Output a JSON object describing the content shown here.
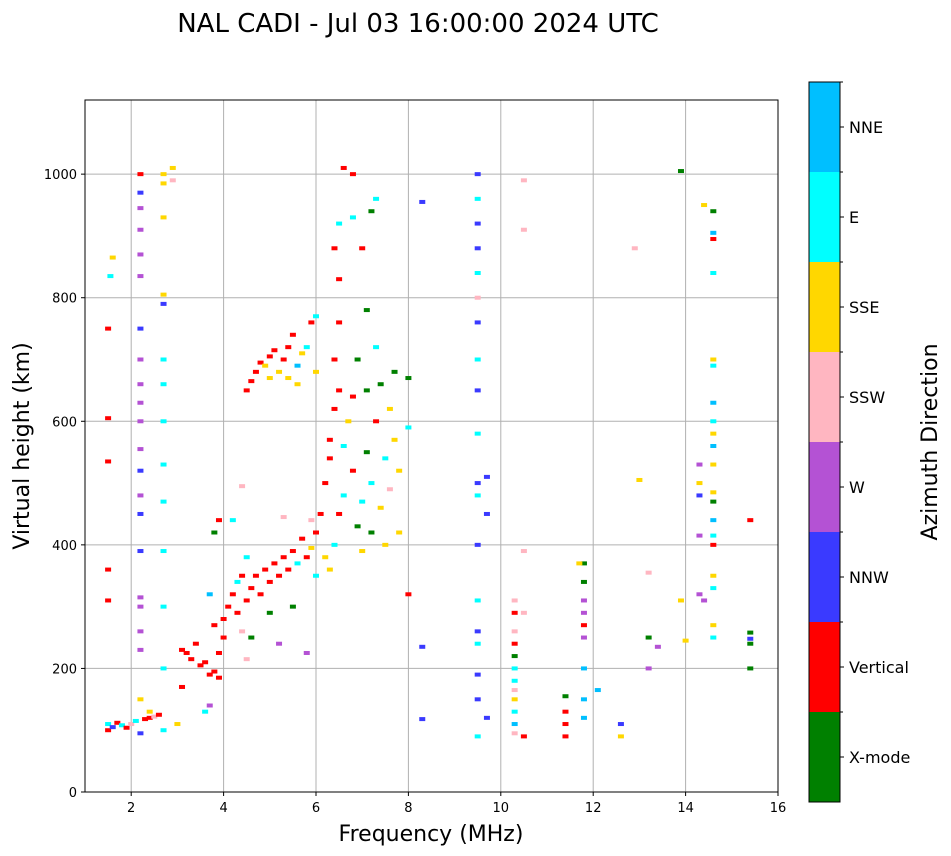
{
  "chart_data": {
    "type": "scatter",
    "title": "NAL CADI - Jul 03 16:00:00 2024 UTC",
    "xlabel": "Frequency (MHz)",
    "ylabel": "Virtual height (km)",
    "xlim": [
      1,
      16
    ],
    "ylim": [
      0,
      1120
    ],
    "xticks": [
      2,
      4,
      6,
      8,
      10,
      12,
      14,
      16
    ],
    "yticks": [
      0,
      200,
      400,
      600,
      800,
      1000
    ],
    "grid": true,
    "colorbar": {
      "label": "Azimuth Direction",
      "categories": [
        "X-mode",
        "Vertical",
        "NNW",
        "W",
        "SSW",
        "SSE",
        "E",
        "NNE"
      ],
      "colors": [
        "#008000",
        "#ff0000",
        "#3a3aff",
        "#b452d4",
        "#ffb6c1",
        "#ffd700",
        "#00ffff",
        "#00bfff"
      ]
    },
    "point_format": [
      "frequency_mhz",
      "height_km",
      "direction_index"
    ],
    "points": [
      [
        1.5,
        100,
        1
      ],
      [
        1.5,
        110,
        6
      ],
      [
        1.6,
        105,
        2
      ],
      [
        1.7,
        112,
        1
      ],
      [
        1.8,
        108,
        6
      ],
      [
        1.9,
        104,
        1
      ],
      [
        2.0,
        110,
        4
      ],
      [
        2.1,
        115,
        6
      ],
      [
        2.2,
        95,
        2
      ],
      [
        2.3,
        118,
        1
      ],
      [
        2.4,
        120,
        1
      ],
      [
        2.5,
        122,
        4
      ],
      [
        2.6,
        125,
        1
      ],
      [
        2.4,
        130,
        5
      ],
      [
        1.5,
        310,
        1
      ],
      [
        1.5,
        360,
        1
      ],
      [
        1.5,
        535,
        1
      ],
      [
        1.5,
        605,
        1
      ],
      [
        1.5,
        750,
        1
      ],
      [
        1.6,
        865,
        5
      ],
      [
        1.55,
        835,
        6
      ],
      [
        2.2,
        150,
        5
      ],
      [
        2.2,
        230,
        3
      ],
      [
        2.2,
        260,
        3
      ],
      [
        2.2,
        300,
        3
      ],
      [
        2.2,
        315,
        3
      ],
      [
        2.2,
        390,
        2
      ],
      [
        2.2,
        450,
        2
      ],
      [
        2.2,
        480,
        3
      ],
      [
        2.2,
        520,
        2
      ],
      [
        2.2,
        555,
        3
      ],
      [
        2.2,
        600,
        3
      ],
      [
        2.2,
        630,
        3
      ],
      [
        2.2,
        660,
        3
      ],
      [
        2.2,
        700,
        3
      ],
      [
        2.2,
        750,
        2
      ],
      [
        2.2,
        835,
        3
      ],
      [
        2.2,
        870,
        3
      ],
      [
        2.2,
        910,
        3
      ],
      [
        2.2,
        945,
        3
      ],
      [
        2.2,
        970,
        2
      ],
      [
        2.2,
        1000,
        1
      ],
      [
        2.7,
        100,
        6
      ],
      [
        2.7,
        200,
        6
      ],
      [
        2.7,
        300,
        6
      ],
      [
        2.7,
        390,
        6
      ],
      [
        2.7,
        470,
        6
      ],
      [
        2.7,
        530,
        6
      ],
      [
        2.7,
        600,
        6
      ],
      [
        2.7,
        660,
        6
      ],
      [
        2.7,
        700,
        6
      ],
      [
        2.7,
        790,
        2
      ],
      [
        2.7,
        805,
        5
      ],
      [
        2.7,
        930,
        5
      ],
      [
        2.7,
        985,
        5
      ],
      [
        2.7,
        1000,
        5
      ],
      [
        2.9,
        990,
        4
      ],
      [
        2.9,
        1010,
        5
      ],
      [
        3.0,
        110,
        5
      ],
      [
        3.1,
        170,
        1
      ],
      [
        3.1,
        230,
        1
      ],
      [
        3.2,
        225,
        1
      ],
      [
        3.3,
        215,
        1
      ],
      [
        3.4,
        240,
        1
      ],
      [
        3.5,
        205,
        1
      ],
      [
        3.6,
        210,
        1
      ],
      [
        3.7,
        190,
        1
      ],
      [
        3.8,
        195,
        1
      ],
      [
        3.9,
        185,
        1
      ],
      [
        3.9,
        225,
        1
      ],
      [
        3.8,
        270,
        1
      ],
      [
        4.0,
        250,
        1
      ],
      [
        4.0,
        280,
        1
      ],
      [
        4.1,
        300,
        1
      ],
      [
        4.2,
        320,
        1
      ],
      [
        4.3,
        340,
        6
      ],
      [
        4.3,
        290,
        1
      ],
      [
        4.4,
        260,
        4
      ],
      [
        4.4,
        350,
        1
      ],
      [
        4.5,
        310,
        1
      ],
      [
        4.5,
        380,
        6
      ],
      [
        3.6,
        130,
        6
      ],
      [
        3.7,
        140,
        3
      ],
      [
        3.7,
        320,
        7
      ],
      [
        3.8,
        420,
        0
      ],
      [
        3.9,
        440,
        1
      ],
      [
        4.2,
        440,
        6
      ],
      [
        4.4,
        495,
        4
      ],
      [
        4.5,
        215,
        4
      ],
      [
        4.6,
        250,
        0
      ],
      [
        4.6,
        330,
        1
      ],
      [
        4.7,
        350,
        1
      ],
      [
        4.8,
        320,
        1
      ],
      [
        4.9,
        360,
        1
      ],
      [
        5.0,
        340,
        1
      ],
      [
        5.0,
        290,
        0
      ],
      [
        5.1,
        370,
        1
      ],
      [
        5.2,
        350,
        1
      ],
      [
        5.2,
        240,
        3
      ],
      [
        5.3,
        380,
        1
      ],
      [
        5.4,
        360,
        1
      ],
      [
        5.5,
        390,
        1
      ],
      [
        5.5,
        300,
        0
      ],
      [
        5.6,
        370,
        6
      ],
      [
        5.7,
        410,
        1
      ],
      [
        5.8,
        380,
        1
      ],
      [
        5.8,
        225,
        3
      ],
      [
        5.9,
        395,
        5
      ],
      [
        6.0,
        420,
        1
      ],
      [
        6.0,
        350,
        6
      ],
      [
        5.9,
        440,
        4
      ],
      [
        5.3,
        445,
        4
      ],
      [
        4.5,
        650,
        1
      ],
      [
        4.6,
        665,
        1
      ],
      [
        4.7,
        680,
        1
      ],
      [
        4.8,
        695,
        1
      ],
      [
        4.9,
        690,
        5
      ],
      [
        5.0,
        705,
        1
      ],
      [
        5.1,
        715,
        1
      ],
      [
        5.2,
        680,
        5
      ],
      [
        5.3,
        700,
        1
      ],
      [
        5.4,
        720,
        1
      ],
      [
        5.4,
        670,
        5
      ],
      [
        5.5,
        740,
        1
      ],
      [
        5.6,
        690,
        7
      ],
      [
        5.7,
        710,
        5
      ],
      [
        5.8,
        720,
        6
      ],
      [
        5.9,
        760,
        1
      ],
      [
        6.0,
        770,
        6
      ],
      [
        6.0,
        680,
        5
      ],
      [
        5.6,
        660,
        5
      ],
      [
        5.0,
        670,
        5
      ],
      [
        6.1,
        450,
        1
      ],
      [
        6.2,
        500,
        1
      ],
      [
        6.3,
        540,
        1
      ],
      [
        6.3,
        570,
        1
      ],
      [
        6.4,
        620,
        1
      ],
      [
        6.5,
        650,
        1
      ],
      [
        6.4,
        700,
        1
      ],
      [
        6.5,
        760,
        1
      ],
      [
        6.5,
        830,
        1
      ],
      [
        6.4,
        880,
        1
      ],
      [
        6.5,
        920,
        6
      ],
      [
        6.6,
        1010,
        1
      ],
      [
        6.2,
        380,
        5
      ],
      [
        6.3,
        360,
        5
      ],
      [
        6.4,
        400,
        6
      ],
      [
        6.5,
        450,
        1
      ],
      [
        6.6,
        480,
        6
      ],
      [
        6.6,
        560,
        6
      ],
      [
        6.7,
        600,
        5
      ],
      [
        6.8,
        520,
        1
      ],
      [
        6.8,
        640,
        1
      ],
      [
        6.9,
        700,
        0
      ],
      [
        6.9,
        430,
        0
      ],
      [
        7.0,
        390,
        5
      ],
      [
        7.0,
        470,
        6
      ],
      [
        7.1,
        550,
        0
      ],
      [
        7.1,
        650,
        0
      ],
      [
        7.1,
        780,
        0
      ],
      [
        7.2,
        420,
        0
      ],
      [
        7.2,
        500,
        6
      ],
      [
        7.3,
        600,
        1
      ],
      [
        7.3,
        720,
        6
      ],
      [
        7.4,
        460,
        5
      ],
      [
        7.4,
        660,
        0
      ],
      [
        7.5,
        400,
        5
      ],
      [
        7.5,
        540,
        6
      ],
      [
        7.6,
        490,
        4
      ],
      [
        7.6,
        620,
        5
      ],
      [
        7.7,
        570,
        5
      ],
      [
        7.8,
        520,
        5
      ],
      [
        7.8,
        420,
        5
      ],
      [
        7.7,
        680,
        0
      ],
      [
        7.2,
        940,
        0
      ],
      [
        7.3,
        960,
        6
      ],
      [
        6.8,
        1000,
        1
      ],
      [
        6.8,
        930,
        6
      ],
      [
        7.0,
        880,
        1
      ],
      [
        8.0,
        590,
        6
      ],
      [
        8.0,
        670,
        0
      ],
      [
        8.0,
        320,
        1
      ],
      [
        8.3,
        955,
        2
      ],
      [
        8.3,
        235,
        2
      ],
      [
        8.3,
        118,
        2
      ],
      [
        9.5,
        90,
        6
      ],
      [
        9.5,
        150,
        2
      ],
      [
        9.5,
        190,
        2
      ],
      [
        9.5,
        240,
        6
      ],
      [
        9.5,
        260,
        2
      ],
      [
        9.5,
        310,
        6
      ],
      [
        9.5,
        400,
        2
      ],
      [
        9.5,
        480,
        6
      ],
      [
        9.5,
        500,
        2
      ],
      [
        9.5,
        580,
        6
      ],
      [
        9.5,
        650,
        2
      ],
      [
        9.5,
        700,
        6
      ],
      [
        9.5,
        760,
        2
      ],
      [
        9.5,
        800,
        4
      ],
      [
        9.5,
        840,
        6
      ],
      [
        9.5,
        880,
        2
      ],
      [
        9.5,
        920,
        2
      ],
      [
        9.5,
        960,
        6
      ],
      [
        9.5,
        1000,
        2
      ],
      [
        9.7,
        510,
        2
      ],
      [
        9.7,
        450,
        2
      ],
      [
        9.7,
        120,
        2
      ],
      [
        10.3,
        95,
        4
      ],
      [
        10.3,
        110,
        7
      ],
      [
        10.3,
        130,
        6
      ],
      [
        10.3,
        150,
        5
      ],
      [
        10.3,
        165,
        4
      ],
      [
        10.3,
        180,
        6
      ],
      [
        10.3,
        200,
        6
      ],
      [
        10.3,
        220,
        0
      ],
      [
        10.3,
        240,
        1
      ],
      [
        10.3,
        260,
        4
      ],
      [
        10.3,
        290,
        1
      ],
      [
        10.3,
        310,
        4
      ],
      [
        10.5,
        90,
        1
      ],
      [
        10.5,
        390,
        4
      ],
      [
        10.5,
        290,
        4
      ],
      [
        10.5,
        910,
        4
      ],
      [
        10.5,
        990,
        4
      ],
      [
        11.4,
        90,
        1
      ],
      [
        11.4,
        110,
        1
      ],
      [
        11.4,
        130,
        1
      ],
      [
        11.4,
        155,
        0
      ],
      [
        11.8,
        120,
        7
      ],
      [
        11.8,
        150,
        7
      ],
      [
        11.8,
        200,
        7
      ],
      [
        11.8,
        250,
        3
      ],
      [
        11.8,
        270,
        1
      ],
      [
        11.8,
        290,
        3
      ],
      [
        11.8,
        310,
        3
      ],
      [
        11.8,
        340,
        0
      ],
      [
        11.8,
        370,
        0
      ],
      [
        11.7,
        370,
        5
      ],
      [
        12.1,
        165,
        7
      ],
      [
        12.6,
        90,
        5
      ],
      [
        12.6,
        110,
        2
      ],
      [
        12.9,
        880,
        4
      ],
      [
        13.0,
        505,
        5
      ],
      [
        13.2,
        250,
        0
      ],
      [
        13.2,
        355,
        4
      ],
      [
        13.2,
        200,
        3
      ],
      [
        13.4,
        235,
        3
      ],
      [
        13.9,
        1005,
        0
      ],
      [
        13.9,
        310,
        5
      ],
      [
        14.0,
        245,
        5
      ],
      [
        14.3,
        320,
        3
      ],
      [
        14.3,
        415,
        3
      ],
      [
        14.3,
        480,
        2
      ],
      [
        14.3,
        500,
        5
      ],
      [
        14.3,
        530,
        3
      ],
      [
        14.4,
        310,
        3
      ],
      [
        14.4,
        950,
        5
      ],
      [
        14.6,
        250,
        6
      ],
      [
        14.6,
        270,
        5
      ],
      [
        14.6,
        330,
        6
      ],
      [
        14.6,
        350,
        5
      ],
      [
        14.6,
        400,
        1
      ],
      [
        14.6,
        415,
        6
      ],
      [
        14.6,
        440,
        7
      ],
      [
        14.6,
        470,
        0
      ],
      [
        14.6,
        485,
        5
      ],
      [
        14.6,
        530,
        5
      ],
      [
        14.6,
        560,
        7
      ],
      [
        14.6,
        580,
        5
      ],
      [
        14.6,
        600,
        6
      ],
      [
        14.6,
        630,
        7
      ],
      [
        14.6,
        690,
        6
      ],
      [
        14.6,
        700,
        5
      ],
      [
        14.6,
        840,
        6
      ],
      [
        14.6,
        895,
        1
      ],
      [
        14.6,
        905,
        7
      ],
      [
        14.6,
        940,
        0
      ],
      [
        15.4,
        200,
        0
      ],
      [
        15.4,
        240,
        0
      ],
      [
        15.4,
        248,
        2
      ],
      [
        15.4,
        258,
        0
      ],
      [
        15.4,
        440,
        1
      ]
    ]
  }
}
